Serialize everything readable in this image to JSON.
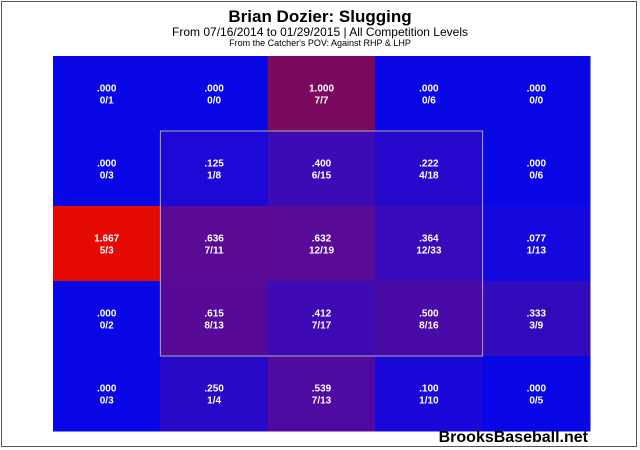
{
  "header": {
    "title": "Brian Dozier: Slugging",
    "subtitle": "From 07/16/2014 to 01/29/2015 | All Competition Levels",
    "subtitle2": "From the Catcher's POV:  Against RHP & LHP"
  },
  "footer": {
    "brand": "BrooksBaseball.net"
  },
  "colors": {
    "cold": "#0a07e6",
    "hot": "#e60a05",
    "zone_border": "#aaaaaa",
    "text": "#ffffff"
  },
  "chart_data": {
    "type": "heatmap",
    "title": "Brian Dozier: Slugging",
    "rows": 5,
    "cols": 5,
    "strike_zone": "inner 3x3 cells",
    "cells": [
      [
        {
          "value": ".000",
          "label": "0/1",
          "color": "#0a07e6"
        },
        {
          "value": ".000",
          "label": "0/0",
          "color": "#0a07e6"
        },
        {
          "value": "1.000",
          "label": "7/7",
          "color": "#7a0a5e"
        },
        {
          "value": ".000",
          "label": "0/6",
          "color": "#0a07e6"
        },
        {
          "value": ".000",
          "label": "0/0",
          "color": "#0a07e6"
        }
      ],
      [
        {
          "value": ".000",
          "label": "0/3",
          "color": "#0a07e6"
        },
        {
          "value": ".125",
          "label": "1/8",
          "color": "#1d08d6"
        },
        {
          "value": ".400",
          "label": "6/15",
          "color": "#3c0bb5"
        },
        {
          "value": ".222",
          "label": "4/18",
          "color": "#2609cc"
        },
        {
          "value": ".000",
          "label": "0/6",
          "color": "#0a07e6"
        }
      ],
      [
        {
          "value": "1.667",
          "label": "5/3",
          "color": "#e60a05"
        },
        {
          "value": ".636",
          "label": "7/11",
          "color": "#5a0a95"
        },
        {
          "value": ".632",
          "label": "12/19",
          "color": "#590a96"
        },
        {
          "value": ".364",
          "label": "12/33",
          "color": "#380ab9"
        },
        {
          "value": ".077",
          "label": "1/13",
          "color": "#1508de"
        }
      ],
      [
        {
          "value": ".000",
          "label": "0/2",
          "color": "#0a07e6"
        },
        {
          "value": ".615",
          "label": "8/13",
          "color": "#570a98"
        },
        {
          "value": ".412",
          "label": "7/17",
          "color": "#3d0ab3"
        },
        {
          "value": ".500",
          "label": "8/16",
          "color": "#4a0aa6"
        },
        {
          "value": ".333",
          "label": "3/9",
          "color": "#340abd"
        }
      ],
      [
        {
          "value": ".000",
          "label": "0/3",
          "color": "#0a07e6"
        },
        {
          "value": ".250",
          "label": "1/4",
          "color": "#2909c8"
        },
        {
          "value": ".539",
          "label": "7/13",
          "color": "#4e0aa1"
        },
        {
          "value": ".100",
          "label": "1/10",
          "color": "#1a08da"
        },
        {
          "value": ".000",
          "label": "0/5",
          "color": "#0a07e6"
        }
      ]
    ]
  }
}
